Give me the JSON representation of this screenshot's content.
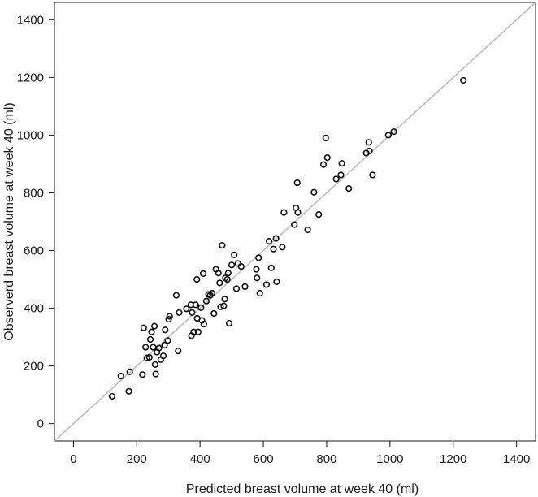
{
  "chart_data": {
    "type": "scatter",
    "xlabel": "Predicted breast volume at week 40 (ml)",
    "ylabel": "Observerd breast volume at week 40 (ml)",
    "xlim": [
      -60,
      1460
    ],
    "ylim": [
      -60,
      1460
    ],
    "xticks": [
      0,
      200,
      400,
      600,
      800,
      1000,
      1200,
      1400
    ],
    "yticks": [
      0,
      200,
      400,
      600,
      800,
      1000,
      1200,
      1400
    ],
    "grid": false,
    "reference_line": {
      "type": "identity",
      "color": "#bdbdbd"
    },
    "marker_color": "#111111",
    "points": [
      [
        122,
        95
      ],
      [
        150,
        165
      ],
      [
        175,
        112
      ],
      [
        178,
        180
      ],
      [
        218,
        170
      ],
      [
        222,
        332
      ],
      [
        228,
        265
      ],
      [
        232,
        228
      ],
      [
        240,
        230
      ],
      [
        243,
        292
      ],
      [
        247,
        318
      ],
      [
        252,
        265
      ],
      [
        256,
        338
      ],
      [
        258,
        205
      ],
      [
        260,
        172
      ],
      [
        264,
        248
      ],
      [
        270,
        262
      ],
      [
        276,
        222
      ],
      [
        284,
        235
      ],
      [
        288,
        272
      ],
      [
        290,
        325
      ],
      [
        298,
        288
      ],
      [
        301,
        362
      ],
      [
        304,
        372
      ],
      [
        325,
        445
      ],
      [
        331,
        252
      ],
      [
        334,
        385
      ],
      [
        357,
        398
      ],
      [
        371,
        412
      ],
      [
        373,
        305
      ],
      [
        375,
        385
      ],
      [
        380,
        318
      ],
      [
        386,
        412
      ],
      [
        390,
        500
      ],
      [
        391,
        365
      ],
      [
        394,
        318
      ],
      [
        403,
        402
      ],
      [
        406,
        358
      ],
      [
        410,
        520
      ],
      [
        412,
        345
      ],
      [
        420,
        425
      ],
      [
        427,
        448
      ],
      [
        432,
        445
      ],
      [
        438,
        452
      ],
      [
        444,
        382
      ],
      [
        450,
        535
      ],
      [
        458,
        522
      ],
      [
        462,
        488
      ],
      [
        465,
        405
      ],
      [
        470,
        618
      ],
      [
        475,
        408
      ],
      [
        478,
        432
      ],
      [
        480,
        505
      ],
      [
        486,
        500
      ],
      [
        489,
        522
      ],
      [
        492,
        348
      ],
      [
        500,
        550
      ],
      [
        508,
        585
      ],
      [
        515,
        468
      ],
      [
        520,
        555
      ],
      [
        530,
        545
      ],
      [
        542,
        475
      ],
      [
        578,
        535
      ],
      [
        580,
        505
      ],
      [
        585,
        575
      ],
      [
        589,
        452
      ],
      [
        610,
        482
      ],
      [
        618,
        632
      ],
      [
        625,
        540
      ],
      [
        632,
        605
      ],
      [
        640,
        642
      ],
      [
        642,
        492
      ],
      [
        660,
        612
      ],
      [
        665,
        732
      ],
      [
        698,
        690
      ],
      [
        703,
        748
      ],
      [
        707,
        835
      ],
      [
        709,
        732
      ],
      [
        740,
        672
      ],
      [
        760,
        802
      ],
      [
        775,
        725
      ],
      [
        790,
        898
      ],
      [
        797,
        990
      ],
      [
        802,
        922
      ],
      [
        830,
        848
      ],
      [
        845,
        862
      ],
      [
        848,
        902
      ],
      [
        870,
        815
      ],
      [
        925,
        938
      ],
      [
        933,
        975
      ],
      [
        935,
        945
      ],
      [
        945,
        862
      ],
      [
        995,
        1000
      ],
      [
        1012,
        1012
      ],
      [
        1232,
        1190
      ]
    ]
  }
}
